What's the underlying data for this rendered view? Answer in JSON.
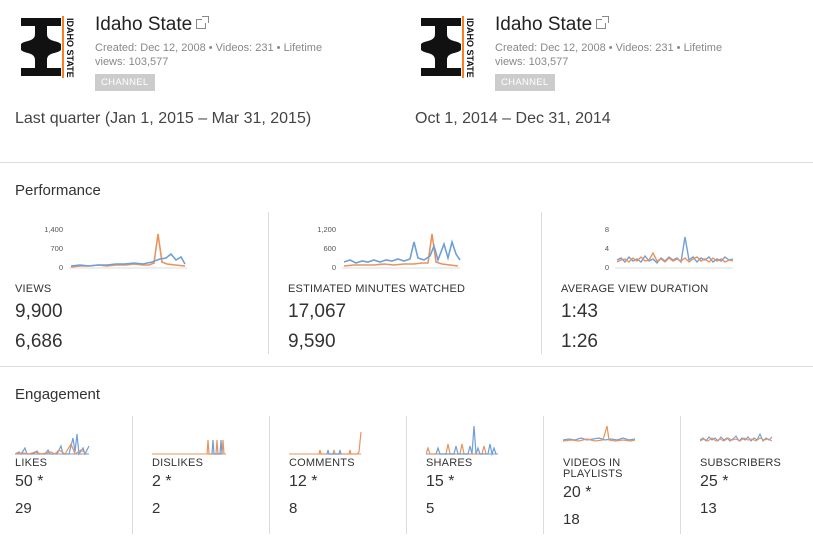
{
  "colors": {
    "blue": "#6f9fd8",
    "orange": "#e8935e",
    "logo_black": "#111111",
    "logo_orange": "#f47f24"
  },
  "channels": [
    {
      "name": "Idaho State",
      "created": "Created: Dec 12, 2008",
      "videos": "Videos: 231",
      "lifetime": "Lifetime",
      "views": "views: 103,577",
      "badge": "CHANNEL",
      "period": "Last quarter (Jan 1, 2015 – Mar 31, 2015)",
      "logo_text": "IDAHO STATE"
    },
    {
      "name": "Idaho State",
      "created": "Created: Dec 12, 2008",
      "videos": "Videos: 231",
      "lifetime": "Lifetime",
      "views": "views: 103,577",
      "badge": "CHANNEL",
      "period": "Oct 1, 2014 – Dec 31, 2014",
      "logo_text": "IDAHO STATE"
    }
  ],
  "separator": "•",
  "performance": {
    "title": "Performance",
    "metrics": [
      {
        "label": "VIEWS",
        "current": "9,900",
        "previous": "6,686",
        "yticks": [
          "1,400",
          "700",
          "0"
        ]
      },
      {
        "label": "ESTIMATED MINUTES WATCHED",
        "current": "17,067",
        "previous": "9,590",
        "yticks": [
          "1,200",
          "600",
          "0"
        ]
      },
      {
        "label": "AVERAGE VIEW DURATION",
        "current": "1:43",
        "previous": "1:26",
        "yticks": [
          "8",
          "4",
          "0"
        ]
      }
    ]
  },
  "engagement": {
    "title": "Engagement",
    "metrics": [
      {
        "label": "LIKES",
        "current": "50 *",
        "previous": "29"
      },
      {
        "label": "DISLIKES",
        "current": "2 *",
        "previous": "2"
      },
      {
        "label": "COMMENTS",
        "current": "12 *",
        "previous": "8"
      },
      {
        "label": "SHARES",
        "current": "15 *",
        "previous": "5"
      },
      {
        "label": "VIDEOS IN PLAYLISTS",
        "current": "20 *",
        "previous": "18"
      },
      {
        "label": "SUBSCRIBERS",
        "current": "25 *",
        "previous": "13"
      }
    ]
  }
}
